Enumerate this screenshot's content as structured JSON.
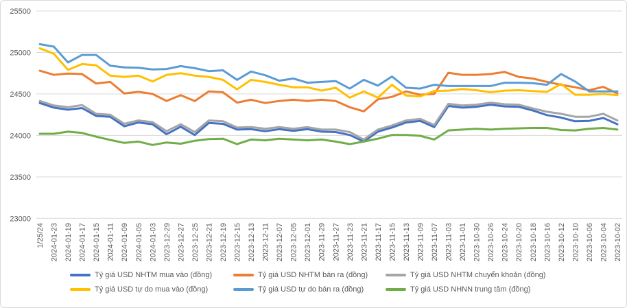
{
  "chart_data": {
    "type": "line",
    "title": "",
    "xlabel": "",
    "ylabel": "",
    "ylim": [
      23000,
      25500
    ],
    "y_ticks": [
      23000,
      23500,
      24000,
      24500,
      25000,
      25500
    ],
    "grid": true,
    "legend_position": "bottom",
    "colors": {
      "background": "#FFFFFF",
      "border": "#D9D9D9",
      "gridline": "#D9D9D9",
      "axis_text": "#595959"
    },
    "categories": [
      "1/25/24",
      "2024-01-23",
      "2024-01-19",
      "2024-01-17",
      "2024-01-15",
      "2024-01-11",
      "2024-01-09",
      "2024-01-05",
      "2024-01-03",
      "2023-12-29",
      "2023-12-27",
      "2023-12-25",
      "2023-12-21",
      "2023-12-19",
      "2023-12-15",
      "2023-12-13",
      "2023-12-11",
      "2023-12-07",
      "2023-12-05",
      "2023-12-01",
      "2023-11-29",
      "2023-11-27",
      "2023-11-23",
      "2023-11-21",
      "2023-11-17",
      "2023-11-15",
      "2023-11-13",
      "2023-11-09",
      "2023-11-07",
      "2023-11-03",
      "2023-11-01",
      "2023-10-30",
      "2023-10-26",
      "2023-10-24",
      "2023-10-20",
      "2023-10-18",
      "2023-10-16",
      "2023-10-12",
      "2023-10-10",
      "2023-10-06",
      "2023-10-04",
      "2023-10-02"
    ],
    "series": [
      {
        "name": "Tỷ giá USD NHTM mua vào (đồng)",
        "color": "#4472C4",
        "values": [
          24390,
          24335,
          24310,
          24330,
          24235,
          24225,
          24110,
          24155,
          24135,
          24015,
          24105,
          24005,
          24150,
          24140,
          24070,
          24075,
          24050,
          24075,
          24055,
          24075,
          24045,
          24040,
          24005,
          23925,
          24045,
          24095,
          24155,
          24175,
          24100,
          24355,
          24335,
          24345,
          24370,
          24350,
          24345,
          24300,
          24245,
          24215,
          24170,
          24175,
          24210,
          24135
        ]
      },
      {
        "name": "Tỷ giá USD NHTM bán ra (đồng)",
        "color": "#ED7D31",
        "values": [
          24780,
          24730,
          24745,
          24740,
          24625,
          24645,
          24505,
          24525,
          24500,
          24415,
          24485,
          24415,
          24530,
          24520,
          24395,
          24430,
          24390,
          24415,
          24430,
          24415,
          24430,
          24415,
          24340,
          24290,
          24435,
          24465,
          24530,
          24490,
          24500,
          24755,
          24730,
          24730,
          24740,
          24765,
          24705,
          24685,
          24645,
          24610,
          24580,
          24545,
          24585,
          24505
        ]
      },
      {
        "name": "Tỷ giá USD NHTM chuyển khoản (đồng)",
        "color": "#A5A5A5",
        "values": [
          24415,
          24360,
          24340,
          24365,
          24260,
          24250,
          24140,
          24180,
          24160,
          24050,
          24135,
          24040,
          24180,
          24170,
          24095,
          24100,
          24080,
          24100,
          24080,
          24100,
          24070,
          24070,
          24040,
          23950,
          24070,
          24120,
          24180,
          24200,
          24125,
          24380,
          24360,
          24370,
          24395,
          24375,
          24370,
          24325,
          24285,
          24260,
          24225,
          24225,
          24260,
          24180
        ]
      },
      {
        "name": "Tỷ giá USD tự do mua vào (đồng)",
        "color": "#FFC000",
        "values": [
          25050,
          24985,
          24790,
          24860,
          24845,
          24720,
          24705,
          24720,
          24650,
          24730,
          24750,
          24720,
          24705,
          24670,
          24555,
          24670,
          24645,
          24610,
          24580,
          24580,
          24540,
          24575,
          24455,
          24530,
          24455,
          24610,
          24480,
          24470,
          24535,
          24540,
          24560,
          24545,
          24520,
          24540,
          24545,
          24535,
          24525,
          24620,
          24490,
          24490,
          24500,
          24485
        ]
      },
      {
        "name": "Tỷ giá USD tự do bán ra (đồng)",
        "color": "#5B9BD5",
        "values": [
          25100,
          25070,
          24880,
          24970,
          24970,
          24840,
          24820,
          24815,
          24795,
          24800,
          24835,
          24810,
          24775,
          24785,
          24670,
          24770,
          24725,
          24660,
          24685,
          24635,
          24645,
          24655,
          24565,
          24670,
          24600,
          24710,
          24575,
          24565,
          24610,
          24595,
          24595,
          24595,
          24595,
          24635,
          24635,
          24630,
          24610,
          24740,
          24650,
          24530,
          24530,
          24530
        ]
      },
      {
        "name": "Tỷ giá USD NHNN trung tâm (đồng)",
        "color": "#70AD47",
        "values": [
          24020,
          24020,
          24045,
          24030,
          23985,
          23945,
          23910,
          23925,
          23885,
          23915,
          23900,
          23935,
          23955,
          23960,
          23895,
          23950,
          23940,
          23960,
          23950,
          23940,
          23950,
          23925,
          23895,
          23925,
          23960,
          24005,
          24005,
          23995,
          23950,
          24060,
          24070,
          24080,
          24070,
          24080,
          24085,
          24090,
          24090,
          24065,
          24060,
          24080,
          24090,
          24070
        ]
      }
    ]
  }
}
